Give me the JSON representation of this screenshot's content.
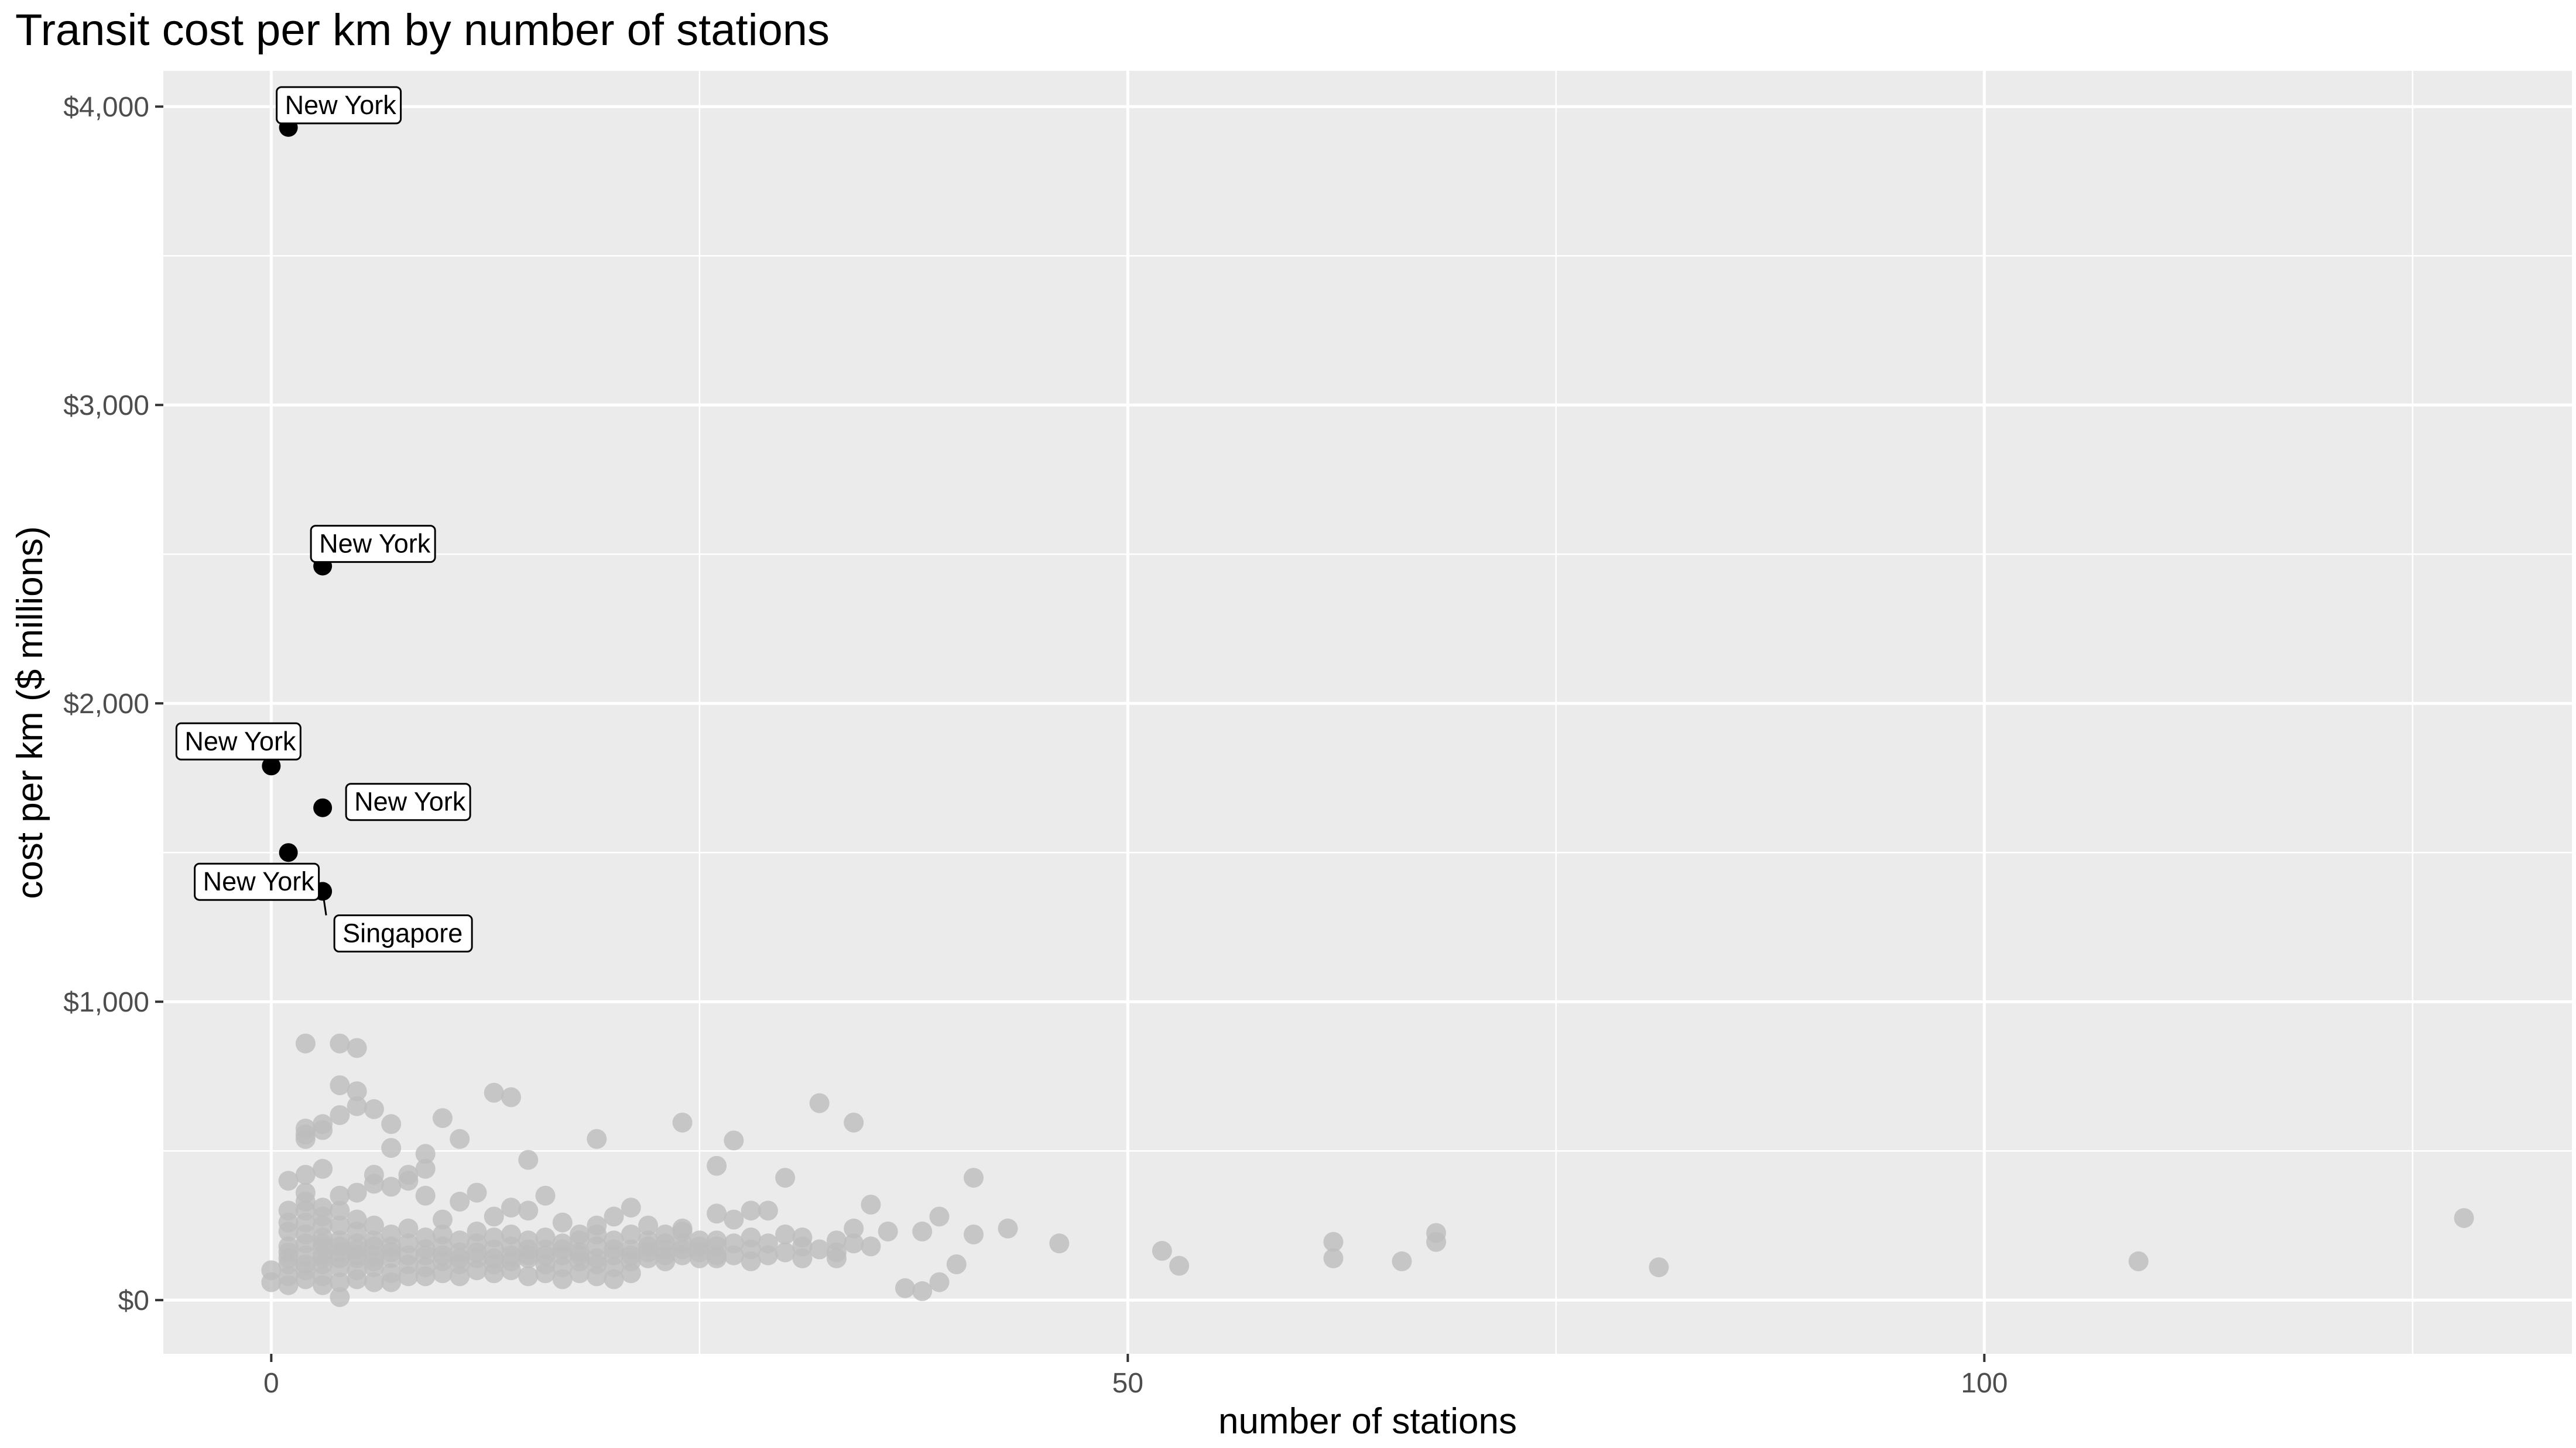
{
  "chart_data": {
    "type": "scatter",
    "title": "Transit cost per km by number of stations",
    "xlabel": "number of stations",
    "ylabel": "cost per km ($ millions)",
    "xlim": [
      -6.3,
      134.3
    ],
    "ylim": [
      -180,
      4120
    ],
    "x_ticks": [
      0,
      50,
      100
    ],
    "x_tick_labels": [
      "0",
      "50",
      "100"
    ],
    "y_ticks": [
      0,
      1000,
      2000,
      3000,
      4000
    ],
    "y_tick_labels": [
      "$0",
      "$1,000",
      "$2,000",
      "$3,000",
      "$4,000"
    ],
    "grid": true,
    "legend": "none",
    "colors": {
      "panel": "#ebebeb",
      "grid": "#ffffff",
      "highlight": "#000000",
      "other": "#bdbdbd"
    },
    "highlighted_points": [
      {
        "x": 1,
        "y": 3930,
        "label": "New York"
      },
      {
        "x": 3,
        "y": 2460,
        "label": "New York"
      },
      {
        "x": 0,
        "y": 1790,
        "label": "New York"
      },
      {
        "x": 3,
        "y": 1650,
        "label": "New York"
      },
      {
        "x": 1,
        "y": 1500,
        "label": "New York"
      },
      {
        "x": 3,
        "y": 1370,
        "label": "Singapore"
      }
    ],
    "other_points": [
      [
        2,
        860
      ],
      [
        4,
        860
      ],
      [
        5,
        845
      ],
      [
        4,
        720
      ],
      [
        5,
        700
      ],
      [
        6,
        640
      ],
      [
        5,
        650
      ],
      [
        4,
        620
      ],
      [
        7,
        590
      ],
      [
        2,
        575
      ],
      [
        2,
        555
      ],
      [
        3,
        590
      ],
      [
        3,
        570
      ],
      [
        2,
        540
      ],
      [
        7,
        510
      ],
      [
        10,
        610
      ],
      [
        11,
        540
      ],
      [
        9,
        490
      ],
      [
        9,
        440
      ],
      [
        13,
        695
      ],
      [
        14,
        680
      ],
      [
        15,
        470
      ],
      [
        19,
        540
      ],
      [
        24,
        595
      ],
      [
        27,
        535
      ],
      [
        26,
        450
      ],
      [
        32,
        660
      ],
      [
        34,
        595
      ],
      [
        30,
        410
      ],
      [
        41,
        410
      ],
      [
        43,
        240
      ],
      [
        39,
        280
      ],
      [
        38,
        230
      ],
      [
        35,
        320
      ],
      [
        34,
        240
      ],
      [
        33,
        200
      ],
      [
        31,
        210
      ],
      [
        30,
        220
      ],
      [
        29,
        300
      ],
      [
        28,
        300
      ],
      [
        28,
        210
      ],
      [
        27,
        270
      ],
      [
        26,
        290
      ],
      [
        26,
        200
      ],
      [
        25,
        180
      ],
      [
        24,
        230
      ],
      [
        23,
        190
      ],
      [
        22,
        250
      ],
      [
        21,
        310
      ],
      [
        20,
        280
      ],
      [
        19,
        250
      ],
      [
        18,
        220
      ],
      [
        17,
        260
      ],
      [
        16,
        350
      ],
      [
        15,
        300
      ],
      [
        14,
        310
      ],
      [
        13,
        280
      ],
      [
        12,
        360
      ],
      [
        11,
        330
      ],
      [
        10,
        270
      ],
      [
        9,
        350
      ],
      [
        8,
        420
      ],
      [
        8,
        400
      ],
      [
        7,
        380
      ],
      [
        6,
        420
      ],
      [
        6,
        390
      ],
      [
        5,
        360
      ],
      [
        4,
        350
      ],
      [
        3,
        440
      ],
      [
        2,
        420
      ],
      [
        1,
        400
      ],
      [
        1,
        300
      ],
      [
        2,
        360
      ],
      [
        2,
        330
      ],
      [
        3,
        310
      ],
      [
        3,
        280
      ],
      [
        4,
        300
      ],
      [
        4,
        250
      ],
      [
        5,
        270
      ],
      [
        5,
        230
      ],
      [
        6,
        250
      ],
      [
        6,
        200
      ],
      [
        7,
        220
      ],
      [
        7,
        180
      ],
      [
        8,
        240
      ],
      [
        8,
        190
      ],
      [
        9,
        210
      ],
      [
        9,
        170
      ],
      [
        10,
        220
      ],
      [
        10,
        180
      ],
      [
        11,
        200
      ],
      [
        11,
        160
      ],
      [
        12,
        230
      ],
      [
        12,
        190
      ],
      [
        13,
        210
      ],
      [
        13,
        170
      ],
      [
        14,
        220
      ],
      [
        14,
        180
      ],
      [
        15,
        200
      ],
      [
        15,
        150
      ],
      [
        16,
        210
      ],
      [
        16,
        170
      ],
      [
        17,
        190
      ],
      [
        17,
        150
      ],
      [
        18,
        200
      ],
      [
        18,
        160
      ],
      [
        19,
        220
      ],
      [
        19,
        180
      ],
      [
        20,
        200
      ],
      [
        20,
        150
      ],
      [
        21,
        220
      ],
      [
        21,
        170
      ],
      [
        22,
        200
      ],
      [
        22,
        160
      ],
      [
        23,
        220
      ],
      [
        23,
        170
      ],
      [
        24,
        240
      ],
      [
        24,
        190
      ],
      [
        25,
        200
      ],
      [
        25,
        160
      ],
      [
        26,
        180
      ],
      [
        26,
        140
      ],
      [
        27,
        190
      ],
      [
        27,
        150
      ],
      [
        28,
        170
      ],
      [
        29,
        190
      ],
      [
        29,
        150
      ],
      [
        30,
        160
      ],
      [
        31,
        180
      ],
      [
        32,
        170
      ],
      [
        33,
        160
      ],
      [
        34,
        190
      ],
      [
        35,
        180
      ],
      [
        36,
        230
      ],
      [
        0,
        100
      ],
      [
        0,
        60
      ],
      [
        1,
        120
      ],
      [
        1,
        80
      ],
      [
        1,
        50
      ],
      [
        2,
        150
      ],
      [
        2,
        100
      ],
      [
        2,
        70
      ],
      [
        3,
        180
      ],
      [
        3,
        120
      ],
      [
        3,
        80
      ],
      [
        3,
        50
      ],
      [
        4,
        160
      ],
      [
        4,
        110
      ],
      [
        4,
        60
      ],
      [
        4,
        10
      ],
      [
        5,
        140
      ],
      [
        5,
        100
      ],
      [
        5,
        70
      ],
      [
        6,
        150
      ],
      [
        6,
        110
      ],
      [
        6,
        60
      ],
      [
        7,
        140
      ],
      [
        7,
        90
      ],
      [
        7,
        60
      ],
      [
        8,
        120
      ],
      [
        8,
        80
      ],
      [
        9,
        110
      ],
      [
        9,
        80
      ],
      [
        10,
        130
      ],
      [
        10,
        90
      ],
      [
        11,
        120
      ],
      [
        11,
        80
      ],
      [
        12,
        140
      ],
      [
        12,
        100
      ],
      [
        13,
        120
      ],
      [
        13,
        90
      ],
      [
        14,
        130
      ],
      [
        14,
        100
      ],
      [
        15,
        140
      ],
      [
        15,
        80
      ],
      [
        16,
        120
      ],
      [
        16,
        90
      ],
      [
        17,
        110
      ],
      [
        17,
        70
      ],
      [
        18,
        130
      ],
      [
        18,
        90
      ],
      [
        19,
        120
      ],
      [
        19,
        80
      ],
      [
        20,
        110
      ],
      [
        20,
        70
      ],
      [
        21,
        130
      ],
      [
        21,
        90
      ],
      [
        22,
        140
      ],
      [
        23,
        130
      ],
      [
        24,
        150
      ],
      [
        25,
        140
      ],
      [
        26,
        150
      ],
      [
        28,
        130
      ],
      [
        31,
        140
      ],
      [
        33,
        140
      ],
      [
        37,
        40
      ],
      [
        38,
        30
      ],
      [
        39,
        60
      ],
      [
        40,
        120
      ],
      [
        41,
        220
      ],
      [
        46,
        190
      ],
      [
        52,
        165
      ],
      [
        53,
        115
      ],
      [
        62,
        195
      ],
      [
        62,
        140
      ],
      [
        66,
        130
      ],
      [
        68,
        225
      ],
      [
        68,
        195
      ],
      [
        81,
        110
      ],
      [
        109,
        130
      ],
      [
        128,
        275
      ],
      [
        1,
        180
      ],
      [
        1,
        160
      ],
      [
        1,
        140
      ],
      [
        2,
        260
      ],
      [
        2,
        220
      ],
      [
        2,
        190
      ],
      [
        3,
        250
      ],
      [
        3,
        210
      ],
      [
        3,
        190
      ],
      [
        4,
        200
      ],
      [
        4,
        180
      ],
      [
        5,
        190
      ],
      [
        5,
        170
      ],
      [
        6,
        180
      ],
      [
        7,
        160
      ],
      [
        8,
        150
      ],
      [
        9,
        150
      ],
      [
        10,
        150
      ],
      [
        11,
        140
      ],
      [
        12,
        160
      ],
      [
        13,
        140
      ],
      [
        14,
        150
      ],
      [
        15,
        170
      ],
      [
        16,
        150
      ],
      [
        17,
        170
      ],
      [
        18,
        150
      ],
      [
        19,
        140
      ],
      [
        20,
        170
      ],
      [
        21,
        150
      ],
      [
        22,
        180
      ],
      [
        23,
        150
      ],
      [
        24,
        170
      ],
      [
        2,
        300
      ],
      [
        1,
        260
      ],
      [
        1,
        230
      ],
      [
        3,
        150
      ],
      [
        4,
        140
      ],
      [
        5,
        150
      ],
      [
        6,
        130
      ],
      [
        2,
        120
      ],
      [
        3,
        140
      ]
    ]
  }
}
